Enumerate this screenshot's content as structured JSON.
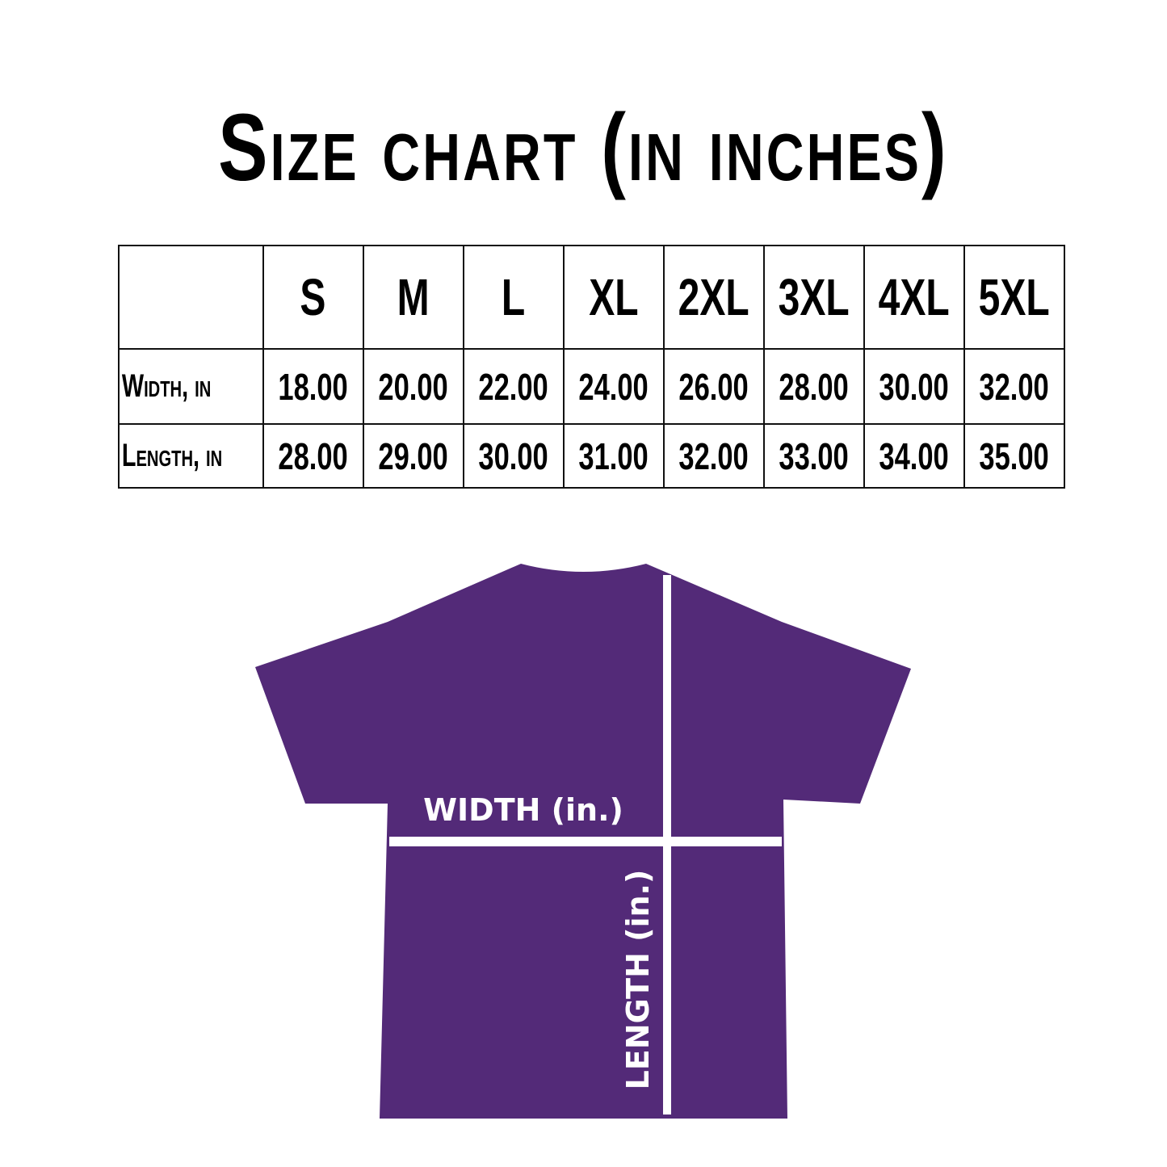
{
  "title": "Size chart (in inches)",
  "table": {
    "sizes": [
      "S",
      "M",
      "L",
      "XL",
      "2XL",
      "3XL",
      "4XL",
      "5XL"
    ],
    "rows": [
      {
        "label": "Width, in",
        "values": [
          "18.00",
          "20.00",
          "22.00",
          "24.00",
          "26.00",
          "28.00",
          "30.00",
          "32.00"
        ]
      },
      {
        "label": "Length, in",
        "values": [
          "28.00",
          "29.00",
          "30.00",
          "31.00",
          "32.00",
          "33.00",
          "34.00",
          "35.00"
        ]
      }
    ]
  },
  "diagram": {
    "width_label": "WIDTH (in.)",
    "length_label": "LENGTH (in.)",
    "shirt_color": "#532a78",
    "line_color": "#ffffff"
  }
}
